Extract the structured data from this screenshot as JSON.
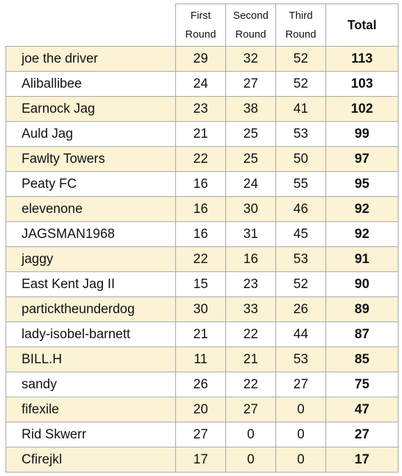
{
  "table": {
    "header": [
      "First Round",
      "Second Round",
      "Third Round",
      "Total"
    ],
    "rows": [
      [
        "joe the driver",
        29,
        32,
        52,
        113
      ],
      [
        "Aliballibee",
        24,
        27,
        52,
        103
      ],
      [
        "Earnock Jag",
        23,
        38,
        41,
        102
      ],
      [
        "Auld Jag",
        21,
        25,
        53,
        99
      ],
      [
        "Fawlty Towers",
        22,
        25,
        50,
        97
      ],
      [
        "Peaty FC",
        16,
        24,
        55,
        95
      ],
      [
        "elevenone",
        16,
        30,
        46,
        92
      ],
      [
        "JAGSMAN1968",
        16,
        31,
        45,
        92
      ],
      [
        "jaggy",
        22,
        16,
        53,
        91
      ],
      [
        "East Kent Jag II",
        15,
        23,
        52,
        90
      ],
      [
        "particktheunderdog",
        30,
        33,
        26,
        89
      ],
      [
        "lady-isobel-barnett",
        21,
        22,
        44,
        87
      ],
      [
        "BILL.H",
        11,
        21,
        53,
        85
      ],
      [
        "sandy",
        26,
        22,
        27,
        75
      ],
      [
        "fifexile",
        20,
        27,
        0,
        47
      ],
      [
        "Rid Skwerr",
        27,
        0,
        0,
        27
      ],
      [
        "Cfirejkl",
        17,
        0,
        0,
        17
      ]
    ]
  }
}
